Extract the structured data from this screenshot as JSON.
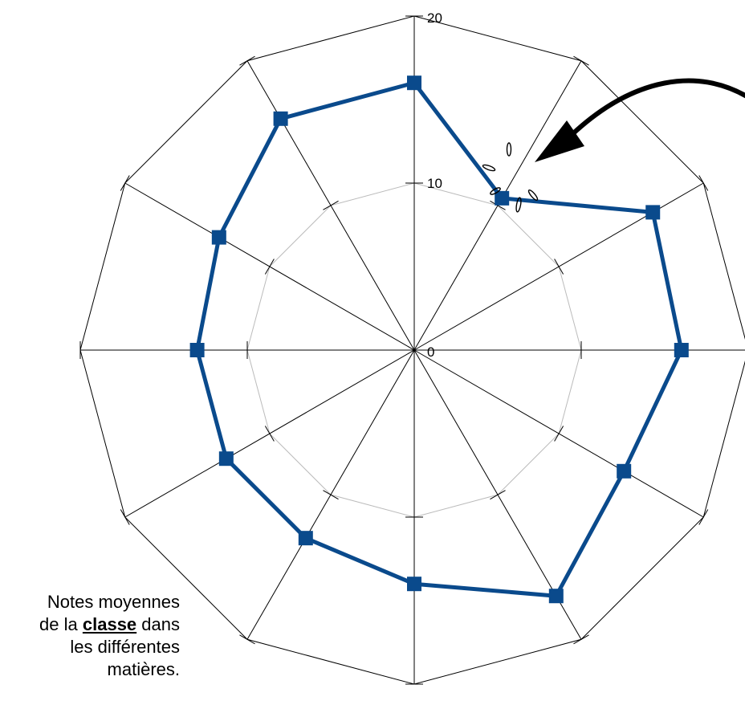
{
  "chart_data": {
    "type": "radar",
    "axes_count": 12,
    "rlim": [
      0,
      20
    ],
    "tick_labels": [
      "0",
      "10",
      "20"
    ],
    "series": [
      {
        "values": [
          16,
          10.5,
          16.5,
          16,
          14.5,
          17,
          14,
          13,
          13,
          13,
          13.5,
          16
        ]
      }
    ],
    "colors": {
      "series": "#0a4a8c",
      "grid_outer": "#000000",
      "grid_inner": "#bbbbbb"
    },
    "annotation": "arrow-pointing-to-highlighted-point"
  },
  "caption": {
    "line1": "Notes moyennes",
    "line2_pre": "de la ",
    "line2_bold": "classe",
    "line2_post": " dans",
    "line3": "les différentes",
    "line4": "matières."
  }
}
